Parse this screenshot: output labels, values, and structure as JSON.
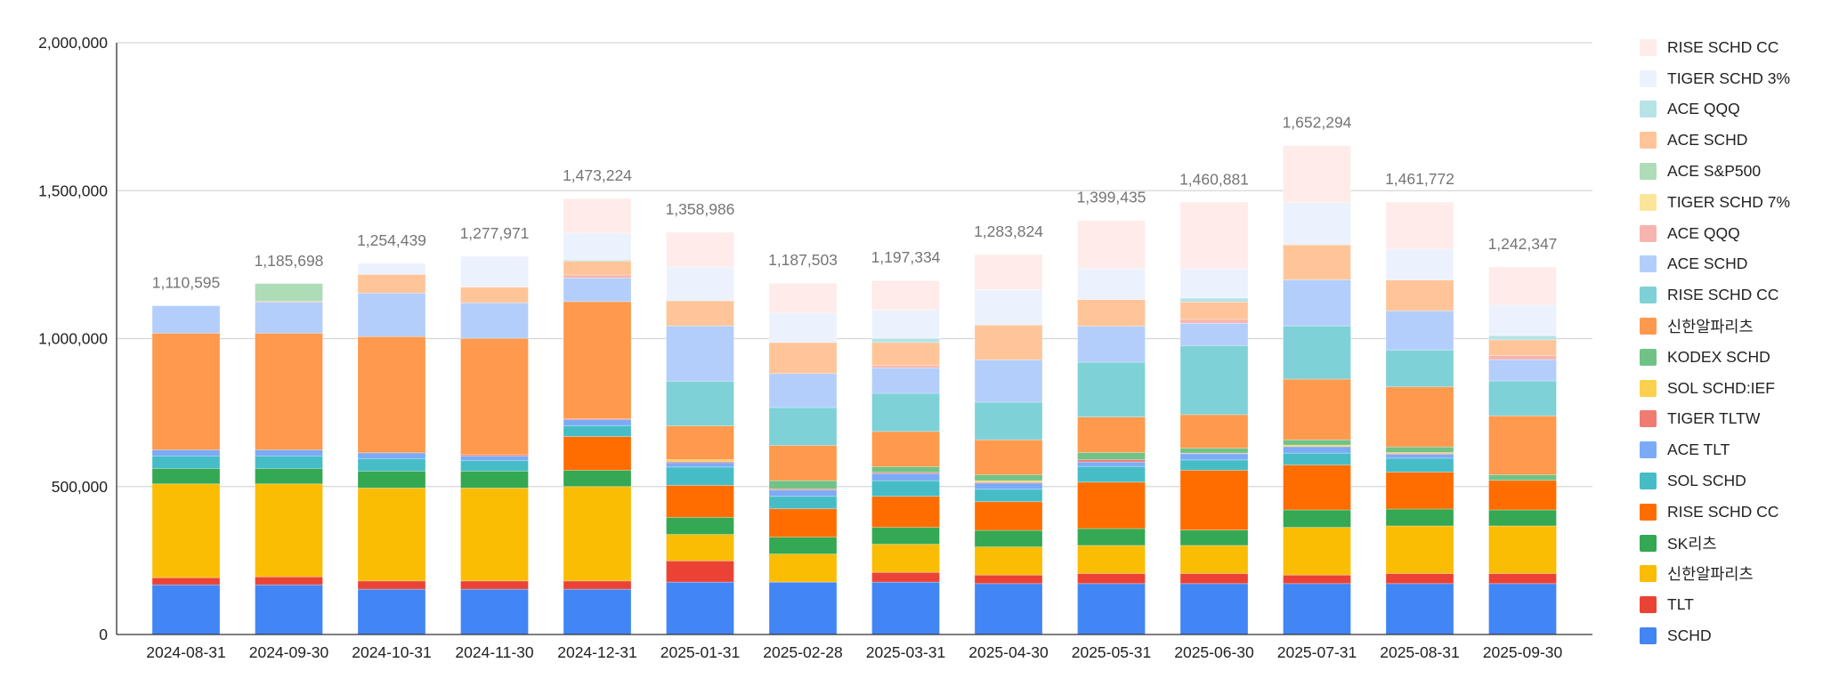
{
  "chart_data": {
    "type": "bar",
    "stacked": true,
    "title": "",
    "xlabel": "",
    "ylabel": "",
    "ylim": [
      0,
      2000000
    ],
    "yticks": [
      "0",
      "500,000",
      "1,000,000",
      "1,500,000",
      "2,000,000"
    ],
    "ytick_values": [
      0,
      500000,
      1000000,
      1500000,
      2000000
    ],
    "grid": true,
    "legend_position": "right",
    "categories": [
      "2024-08-31",
      "2024-09-30",
      "2024-10-31",
      "2024-11-30",
      "2024-12-31",
      "2025-01-31",
      "2025-02-28",
      "2025-03-31",
      "2025-04-30",
      "2025-05-31",
      "2025-06-30",
      "2025-07-31",
      "2025-08-31",
      "2025-09-30"
    ],
    "totals": [
      "1,110,595",
      "1,185,698",
      "1,254,439",
      "1,277,971",
      "1,473,224",
      "1,358,986",
      "1,187,503",
      "1,197,334",
      "1,283,824",
      "1,399,435",
      "1,460,881",
      "1,652,294",
      "1,461,772",
      "1,242,347"
    ],
    "series": [
      {
        "name": "SCHD",
        "color": "#4285F4",
        "values": [
          168000,
          168000,
          153000,
          153000,
          153000,
          177000,
          177000,
          177000,
          172000,
          172000,
          172000,
          172000,
          172000,
          172000
        ]
      },
      {
        "name": "TLT",
        "color": "#EA4335",
        "values": [
          24000,
          27000,
          28000,
          28000,
          28000,
          72000,
          0,
          33000,
          29000,
          34000,
          34000,
          29000,
          34000,
          34000
        ]
      },
      {
        "name": "신한알파리츠",
        "color": "#FBBC04",
        "values": [
          317000,
          314000,
          314000,
          314000,
          319000,
          89000,
          95000,
          95000,
          95000,
          95000,
          95000,
          161000,
          161000,
          161000
        ]
      },
      {
        "name": "SK리츠",
        "color": "#34A853",
        "values": [
          52000,
          52000,
          57000,
          57000,
          55000,
          58000,
          57000,
          57000,
          56000,
          57000,
          52000,
          59000,
          57000,
          54000
        ]
      },
      {
        "name": "RISE SCHD CC",
        "color": "#FF6D01",
        "values": [
          0,
          0,
          0,
          0,
          114000,
          108000,
          96000,
          105000,
          97000,
          157000,
          202000,
          152000,
          125000,
          100000
        ]
      },
      {
        "name": "SOL SCHD",
        "color": "#46BDC6",
        "values": [
          42000,
          42000,
          42000,
          36000,
          37000,
          62000,
          42000,
          53000,
          42000,
          53000,
          35000,
          40000,
          47000,
          0
        ]
      },
      {
        "name": "ACE TLT",
        "color": "#7BAAF7",
        "values": [
          21000,
          21000,
          20000,
          15000,
          20000,
          15000,
          21000,
          24000,
          21000,
          15000,
          21000,
          22000,
          13000,
          0
        ]
      },
      {
        "name": "TIGER TLTW",
        "color": "#F07B72",
        "values": [
          0,
          0,
          0,
          5000,
          4000,
          4000,
          4000,
          4000,
          3000,
          8000,
          2000,
          0,
          3000,
          0
        ]
      },
      {
        "name": "SOL SCHD:IEF",
        "color": "#FCD04F",
        "values": [
          0,
          0,
          0,
          0,
          0,
          6000,
          0,
          0,
          5000,
          0,
          0,
          5000,
          3000,
          0
        ]
      },
      {
        "name": "KODEX SCHD",
        "color": "#71C287",
        "values": [
          0,
          0,
          0,
          0,
          0,
          0,
          28000,
          19000,
          20000,
          24000,
          17000,
          18000,
          19000,
          19000
        ]
      },
      {
        "name": "신한알파리츠",
        "color": "#FF994D",
        "values": [
          394000,
          394000,
          393000,
          393000,
          395000,
          114000,
          119000,
          119000,
          118000,
          120000,
          113000,
          205000,
          203000,
          199000
        ]
      },
      {
        "name": "RISE SCHD CC",
        "color": "#7ED1D7",
        "values": [
          0,
          0,
          0,
          0,
          0,
          151000,
          128000,
          129000,
          127000,
          185000,
          233000,
          180000,
          124000,
          118000
        ]
      },
      {
        "name": "ACE SCHD",
        "color": "#B3CEFB",
        "values": [
          93000,
          105000,
          147000,
          120000,
          80000,
          187000,
          115000,
          86000,
          143000,
          122000,
          76000,
          156000,
          133000,
          72000
        ]
      },
      {
        "name": "ACE QQQ",
        "color": "#F7B4AE",
        "values": [
          0,
          3000,
          0,
          0,
          10000,
          0,
          0,
          8000,
          0,
          0,
          13000,
          0,
          0,
          14000
        ]
      },
      {
        "name": "TIGER SCHD 7%",
        "color": "#FDE49B",
        "values": [
          0,
          0,
          0,
          0,
          0,
          0,
          0,
          0,
          0,
          0,
          0,
          0,
          0,
          0
        ]
      },
      {
        "name": "ACE S&P500",
        "color": "#ADDCB7",
        "values": [
          0,
          60000,
          0,
          0,
          0,
          0,
          0,
          0,
          0,
          0,
          0,
          0,
          0,
          0
        ]
      },
      {
        "name": "ACE SCHD",
        "color": "#FFC599",
        "values": [
          0,
          0,
          63000,
          53000,
          47000,
          85000,
          105000,
          78000,
          118000,
          90000,
          59000,
          118000,
          104000,
          53000
        ]
      },
      {
        "name": "ACE QQQ",
        "color": "#B5E3E6",
        "values": [
          0,
          0,
          0,
          0,
          4000,
          0,
          0,
          14000,
          0,
          0,
          13000,
          0,
          0,
          14000
        ]
      },
      {
        "name": "TIGER SCHD 3%",
        "color": "#ECF2FD",
        "values": [
          0,
          0,
          37000,
          104000,
          91000,
          114000,
          99000,
          95000,
          120000,
          105000,
          100000,
          143000,
          105000,
          103000
        ]
      },
      {
        "name": "RISE SCHD CC",
        "color": "#FEEBEA",
        "values": [
          0,
          0,
          0,
          0,
          116000,
          117000,
          101000,
          100000,
          118000,
          162000,
          224000,
          192000,
          158000,
          129000
        ]
      }
    ]
  }
}
